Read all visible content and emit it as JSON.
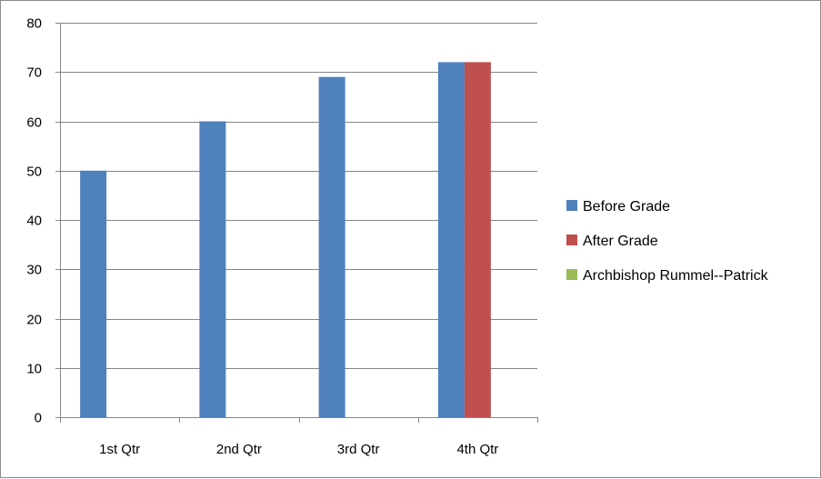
{
  "chart_data": {
    "type": "bar",
    "categories": [
      "1st Qtr",
      "2nd Qtr",
      "3rd Qtr",
      "4th Qtr"
    ],
    "series": [
      {
        "name": "Before Grade",
        "color": "#4f81bd",
        "values": [
          50,
          60,
          69,
          72
        ]
      },
      {
        "name": "After Grade",
        "color": "#c0504d",
        "values": [
          null,
          null,
          null,
          72
        ]
      },
      {
        "name": "Archbishop Rummel--Patrick",
        "color": "#9bbb59",
        "values": [
          null,
          null,
          null,
          null
        ]
      }
    ],
    "ylim": [
      0,
      80
    ],
    "yticks": [
      0,
      10,
      20,
      30,
      40,
      50,
      60,
      70,
      80
    ],
    "grid": true,
    "legend_position": "right"
  }
}
